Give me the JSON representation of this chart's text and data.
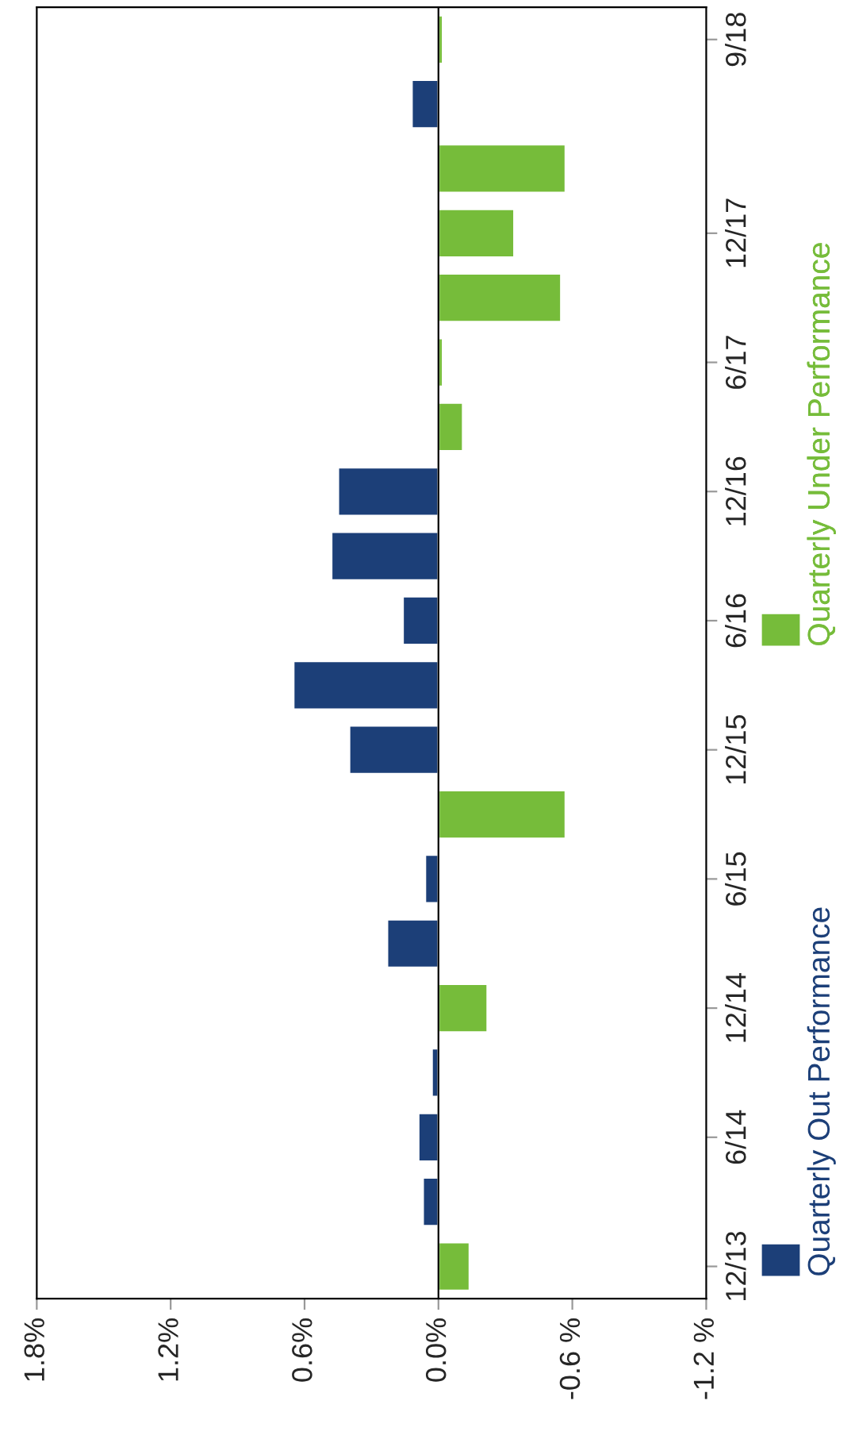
{
  "chart_data": {
    "type": "bar",
    "orientation": "horizontal",
    "categories": [
      "9/18",
      null,
      null,
      "12/17",
      null,
      "6/17",
      null,
      "12/16",
      null,
      "6/16",
      null,
      "12/15",
      null,
      "6/15",
      null,
      "12/14",
      null,
      "6/14",
      null,
      "12/13"
    ],
    "series": [
      {
        "name": "Quarterly Out Performance",
        "color": "#1c3f78",
        "values": [
          null,
          0.12,
          null,
          null,
          null,
          null,
          null,
          0.45,
          0.48,
          0.16,
          0.65,
          0.4,
          null,
          0.06,
          0.23,
          null,
          0.03,
          0.09,
          0.07,
          null
        ]
      },
      {
        "name": "Quarterly Under Performance",
        "color": "#76bc3a",
        "values": [
          -0.02,
          null,
          -0.57,
          -0.34,
          -0.55,
          -0.02,
          -0.11,
          null,
          null,
          null,
          null,
          null,
          -0.57,
          null,
          null,
          -0.22,
          null,
          null,
          null,
          -0.14
        ]
      }
    ],
    "xlim": [
      1.8,
      -1.2
    ],
    "xticks": [
      {
        "value": 1.8,
        "label": "1.8%"
      },
      {
        "value": 1.2,
        "label": "1.2%"
      },
      {
        "value": 0.6,
        "label": "0.6%"
      },
      {
        "value": 0,
        "label": "0.0%"
      },
      {
        "value": -0.6,
        "label": "-0.6 %"
      },
      {
        "value": -1.2,
        "label": "-1.2 %"
      }
    ],
    "ref_lines": [
      {
        "axis": "x",
        "value": 0,
        "color": "#000000"
      }
    ],
    "grid": false,
    "legend": "right"
  }
}
